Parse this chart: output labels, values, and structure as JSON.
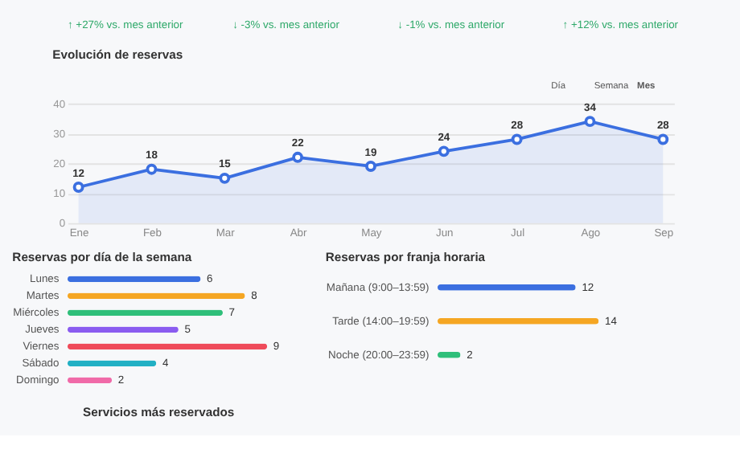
{
  "chart_data": [
    {
      "type": "other",
      "annotations": [
        "↑ +27% vs. mes anterior",
        "↓ -3% vs. mes anterior",
        "↓ -1% vs. mes anterior",
        "↑ +12% vs. mes anterior"
      ]
    },
    {
      "type": "area",
      "title": "Evolución de reservas",
      "categories": [
        "Ene",
        "Feb",
        "Mar",
        "Abr",
        "May",
        "Jun",
        "Jul",
        "Ago",
        "Sep"
      ],
      "values": [
        12,
        18,
        15,
        22,
        19,
        24,
        28,
        34,
        28
      ],
      "color": "#3b6fe0",
      "ylim": [
        0,
        40
      ],
      "yticks": [
        0,
        10,
        20,
        30,
        40
      ],
      "grid": "y",
      "marker": "circle",
      "data_labels": true,
      "annotations": [
        "Día",
        "Semana",
        "Mes"
      ]
    },
    {
      "type": "bar",
      "orientation": "horizontal",
      "title": "Reservas por día de la semana",
      "categories": [
        "Lunes",
        "Martes",
        "Miércoles",
        "Jueves",
        "Viernes",
        "Sábado",
        "Domingo"
      ],
      "values": [
        6,
        8,
        7,
        5,
        9,
        4,
        2
      ],
      "colors": [
        "#3b6fe0",
        "#f5a623",
        "#2fbf7a",
        "#8a5cf0",
        "#ef4b5a",
        "#22b0c4",
        "#f06aa8"
      ],
      "data_labels": true,
      "tick_labels": "y"
    },
    {
      "type": "bar",
      "orientation": "horizontal",
      "title": "Reservas por franja horaria",
      "categories": [
        "Mañana (9:00–13:59)",
        "Tarde (14:00–19:59)",
        "Noche (20:00–23:59)"
      ],
      "values": [
        12,
        14,
        2
      ],
      "colors": [
        "#3b6fe0",
        "#f5a623",
        "#2fbf7a"
      ],
      "data_labels": true,
      "tick_labels": "y"
    },
    {
      "type": "other",
      "title": "Servicios más reservados"
    }
  ]
}
